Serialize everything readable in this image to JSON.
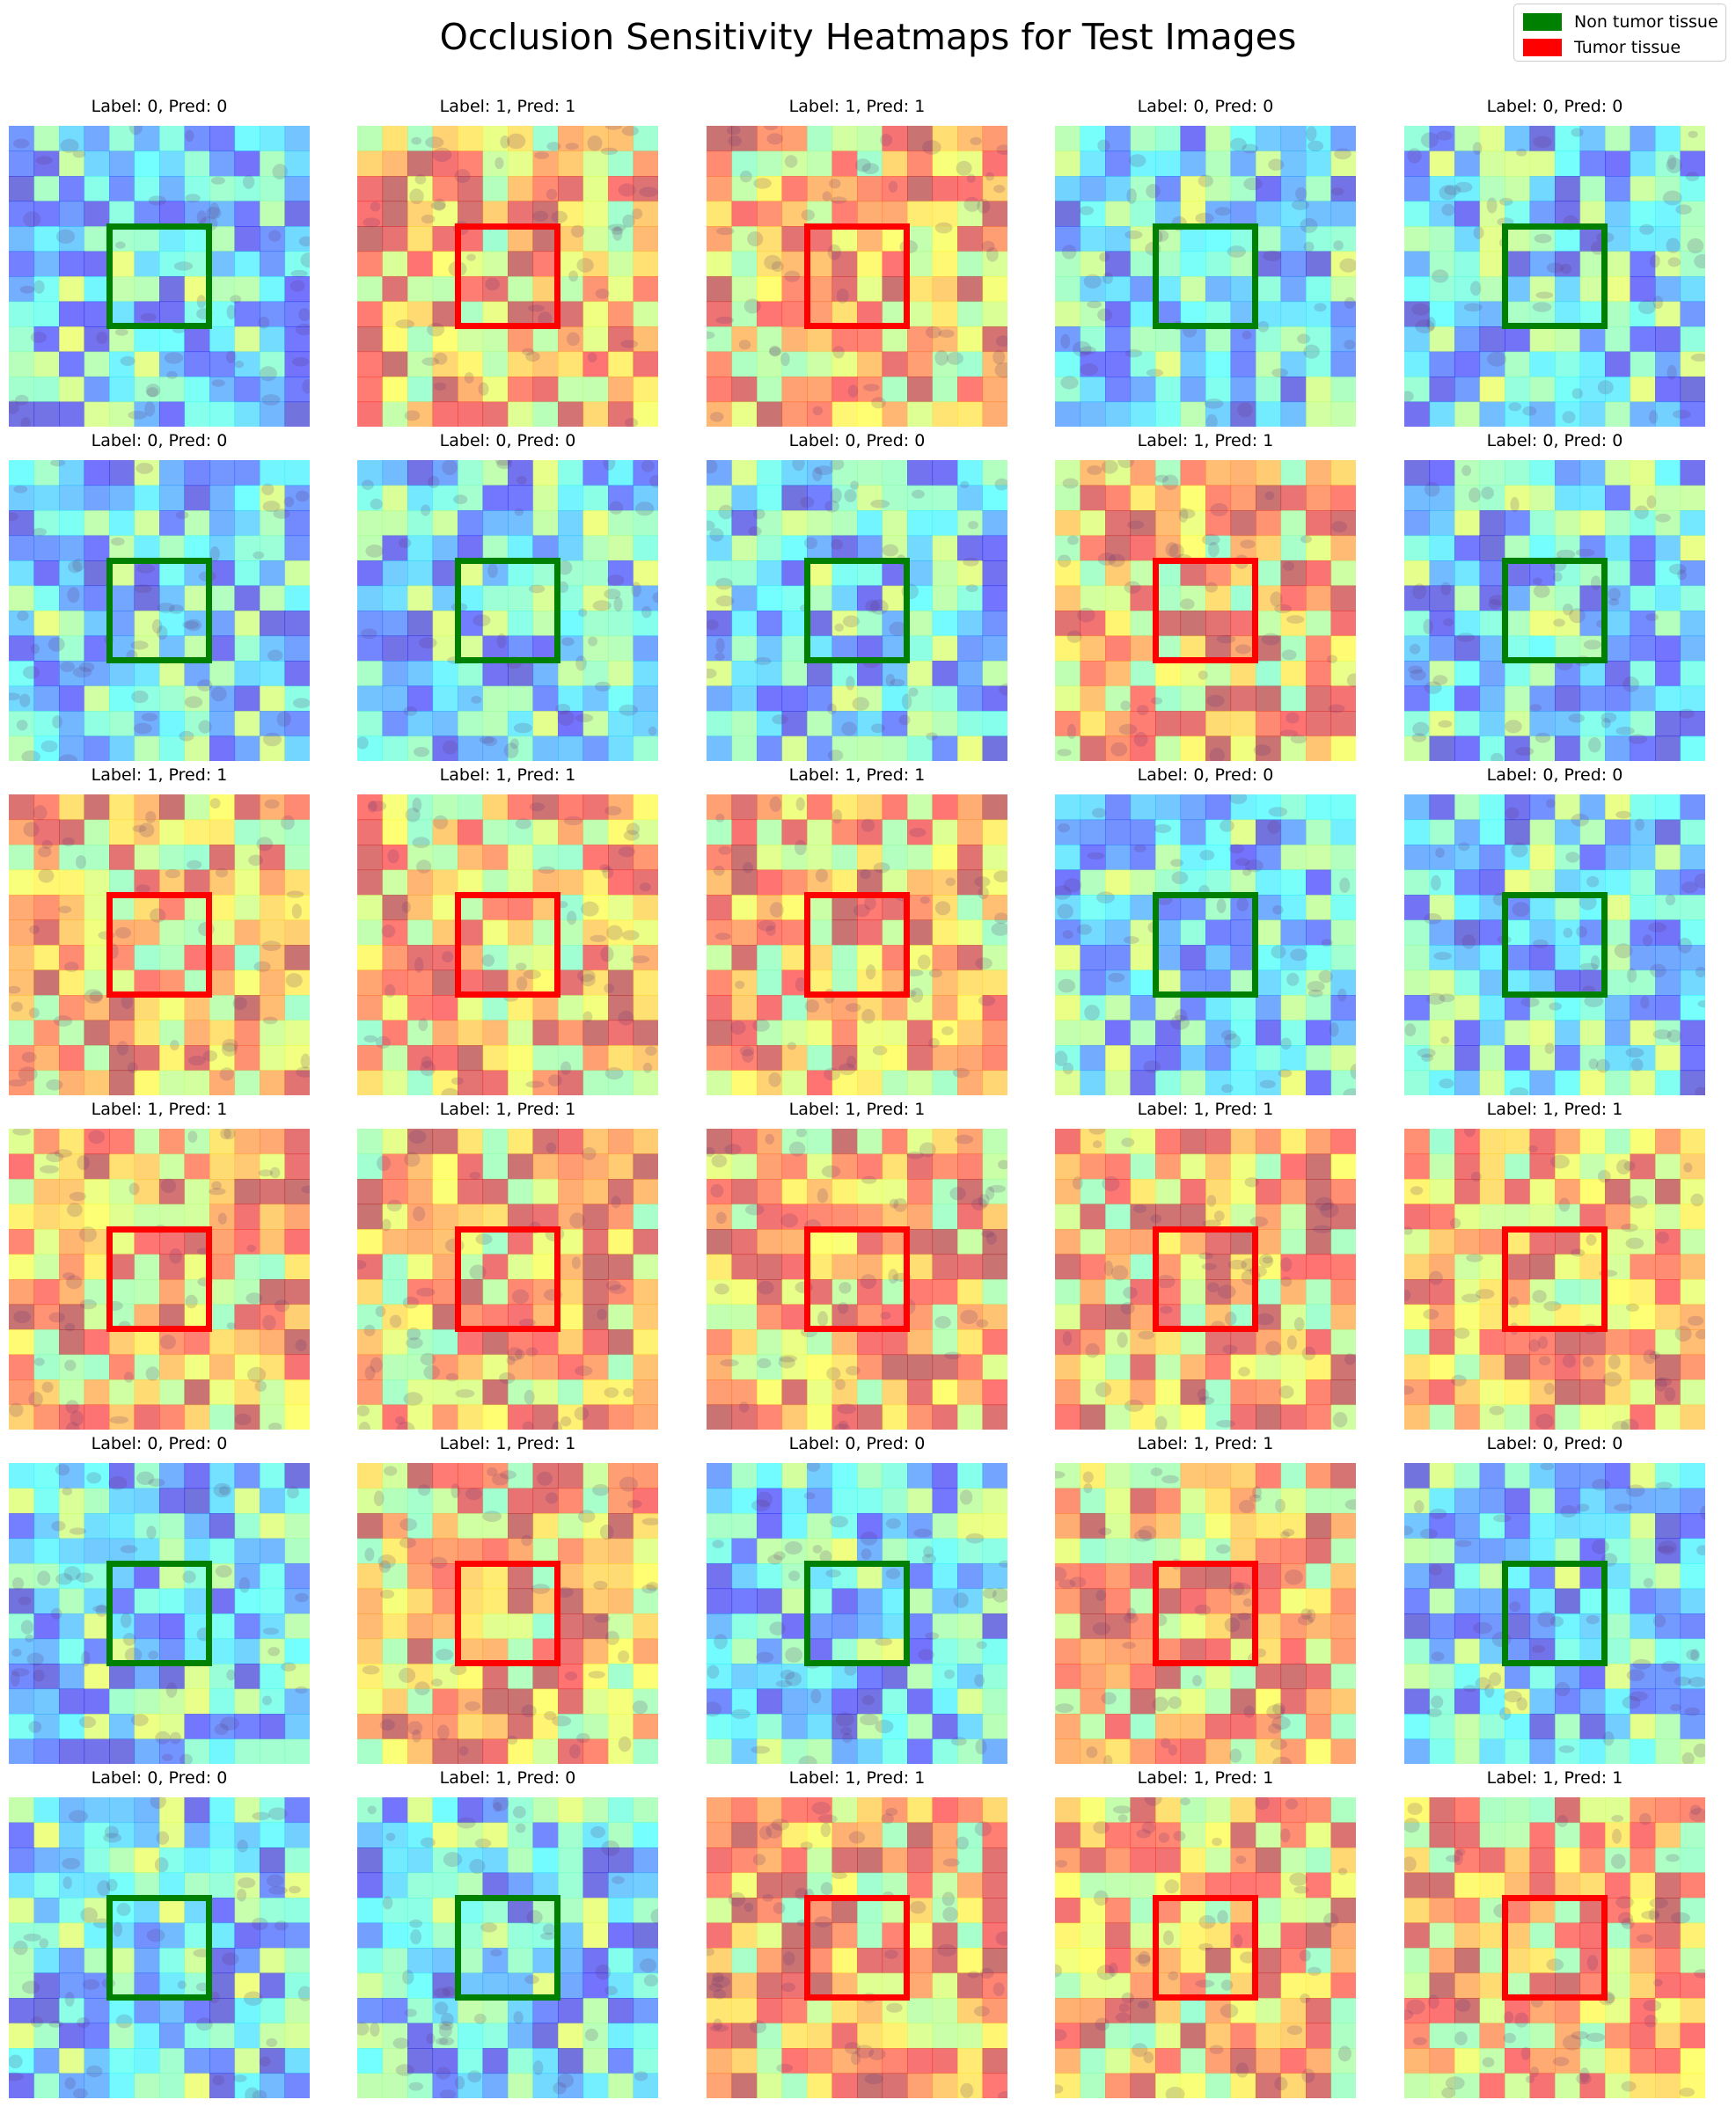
{
  "title": "Occlusion Sensitivity Heatmaps for Test Images",
  "legend": {
    "items": [
      {
        "label": "Non tumor tissue",
        "color": "#008000"
      },
      {
        "label": "Tumor tissue",
        "color": "#ff0000"
      }
    ]
  },
  "panels": [
    {
      "title": "Label: 0, Pred: 0"
    },
    {
      "title": "Label: 1, Pred: 1"
    },
    {
      "title": "Label: 1, Pred: 1"
    },
    {
      "title": "Label: 0, Pred: 0"
    },
    {
      "title": "Label: 0, Pred: 0"
    },
    {
      "title": "Label: 0, Pred: 0"
    },
    {
      "title": "Label: 0, Pred: 0"
    },
    {
      "title": "Label: 0, Pred: 0"
    },
    {
      "title": "Label: 1, Pred: 1"
    },
    {
      "title": "Label: 0, Pred: 0"
    },
    {
      "title": "Label: 1, Pred: 1"
    },
    {
      "title": "Label: 1, Pred: 1"
    },
    {
      "title": "Label: 1, Pred: 1"
    },
    {
      "title": "Label: 0, Pred: 0"
    },
    {
      "title": "Label: 0, Pred: 0"
    },
    {
      "title": "Label: 1, Pred: 1"
    },
    {
      "title": "Label: 1, Pred: 1"
    },
    {
      "title": "Label: 1, Pred: 1"
    },
    {
      "title": "Label: 1, Pred: 1"
    },
    {
      "title": "Label: 1, Pred: 1"
    },
    {
      "title": "Label: 0, Pred: 0"
    },
    {
      "title": "Label: 1, Pred: 1"
    },
    {
      "title": "Label: 0, Pred: 0"
    },
    {
      "title": "Label: 1, Pred: 1"
    },
    {
      "title": "Label: 0, Pred: 0"
    },
    {
      "title": "Label: 0, Pred: 0"
    },
    {
      "title": "Label: 1, Pred: 0"
    },
    {
      "title": "Label: 1, Pred: 1"
    },
    {
      "title": "Label: 1, Pred: 1"
    },
    {
      "title": "Label: 1, Pred: 1"
    }
  ]
}
